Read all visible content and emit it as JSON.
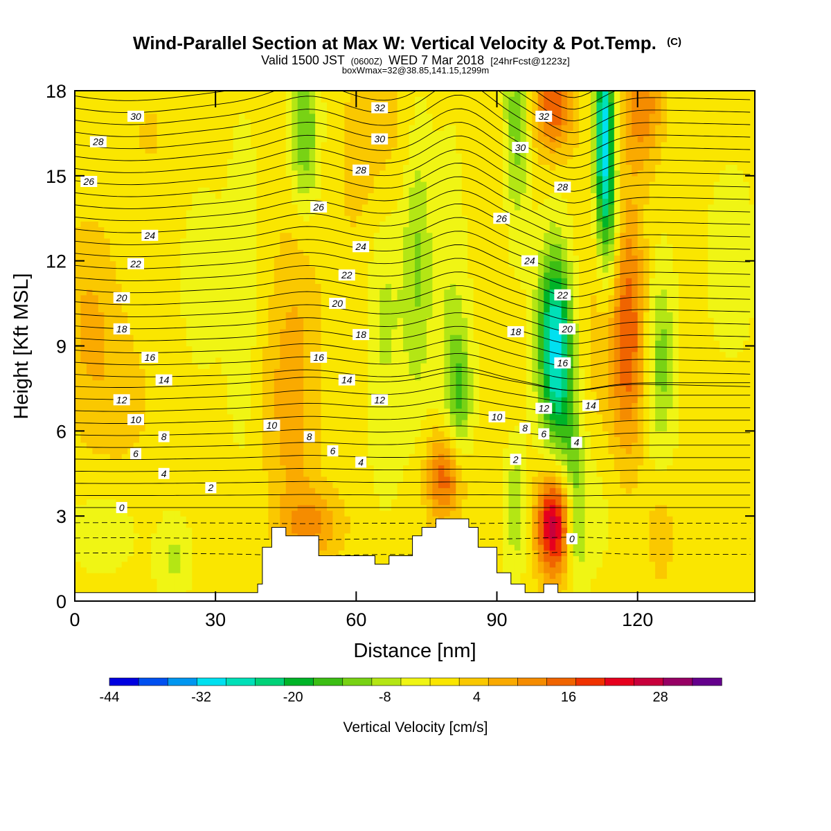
{
  "chart_data": {
    "type": "heatmap",
    "title": "Wind-Parallel Section at Max W: Vertical Velocity & Pot.Temp.",
    "title_unit": "(C)",
    "subtitle_a": "Valid 1500 JST",
    "subtitle_b": "(0600Z)",
    "subtitle_c": "WED 7 Mar 2018",
    "subtitle_d": "[24hrFcst@1223z]",
    "subtitle2": "boxWmax=32@38.85,141.15,1299m",
    "xlabel": "Distance [nm]",
    "ylabel": "Height [Kft MSL]",
    "xlim": [
      0,
      145
    ],
    "ylim": [
      0,
      18
    ],
    "xticks": [
      0,
      30,
      60,
      90,
      120
    ],
    "yticks": [
      0,
      3,
      6,
      9,
      12,
      15,
      18
    ],
    "colorbar": {
      "label": "Vertical Velocity [cm/s]",
      "ticks": [
        -44,
        -32,
        -20,
        -8,
        4,
        16,
        28
      ],
      "levels": [
        -44,
        -40,
        -36,
        -32,
        -28,
        -24,
        -20,
        -16,
        -12,
        -8,
        -4,
        0,
        4,
        8,
        12,
        16,
        20,
        24,
        28,
        32,
        36
      ],
      "colors": [
        "#0000e0",
        "#0050f0",
        "#0096f0",
        "#00e0f0",
        "#00e0b8",
        "#00d278",
        "#00b428",
        "#3cbe14",
        "#78d214",
        "#b4e614",
        "#f0f514",
        "#fae600",
        "#fac800",
        "#faaa00",
        "#f58c00",
        "#f06400",
        "#f03200",
        "#e6001e",
        "#c8003c",
        "#960064",
        "#64008c"
      ]
    },
    "terrain": {
      "x": [
        0,
        39,
        39,
        40,
        40,
        42,
        42,
        45,
        45,
        52,
        52,
        55,
        55,
        64,
        64,
        67,
        67,
        71,
        71,
        72,
        72,
        74,
        74,
        77,
        77,
        84,
        84,
        86,
        86,
        90,
        90,
        93,
        93,
        96,
        96,
        100,
        100,
        103,
        103,
        120,
        120,
        145
      ],
      "y": [
        0.3,
        0.3,
        0.6,
        0.6,
        1.9,
        1.9,
        2.6,
        2.6,
        2.3,
        2.3,
        1.6,
        1.6,
        1.6,
        1.6,
        1.3,
        1.3,
        1.6,
        1.6,
        1.6,
        1.6,
        2.3,
        2.3,
        2.6,
        2.6,
        2.9,
        2.9,
        2.6,
        2.6,
        1.9,
        1.9,
        1.0,
        1.0,
        0.6,
        0.6,
        0.3,
        0.3,
        0.6,
        0.6,
        0.3,
        0.3,
        0.3,
        0.3
      ]
    },
    "theta_levels": [
      -3,
      -2,
      -1,
      0,
      1,
      2,
      3,
      4,
      5,
      6,
      7,
      8,
      9,
      10,
      11,
      12,
      13,
      14,
      15,
      16,
      17,
      18,
      19,
      20,
      21,
      22,
      23,
      24,
      25,
      26,
      27,
      28,
      29,
      30,
      31,
      32,
      33,
      34,
      35,
      36
    ],
    "contour_labels": [
      {
        "text": "30",
        "x": 13,
        "y": 17.1
      },
      {
        "text": "28",
        "x": 5,
        "y": 16.2
      },
      {
        "text": "26",
        "x": 3,
        "y": 14.8
      },
      {
        "text": "24",
        "x": 16,
        "y": 12.9
      },
      {
        "text": "22",
        "x": 13,
        "y": 11.9
      },
      {
        "text": "20",
        "x": 10,
        "y": 10.7
      },
      {
        "text": "18",
        "x": 10,
        "y": 9.6
      },
      {
        "text": "16",
        "x": 16,
        "y": 8.6
      },
      {
        "text": "14",
        "x": 19,
        "y": 7.8
      },
      {
        "text": "12",
        "x": 10,
        "y": 7.1
      },
      {
        "text": "10",
        "x": 13,
        "y": 6.4
      },
      {
        "text": "8",
        "x": 19,
        "y": 5.8
      },
      {
        "text": "6",
        "x": 13,
        "y": 5.2
      },
      {
        "text": "4",
        "x": 19,
        "y": 4.5
      },
      {
        "text": "2",
        "x": 29,
        "y": 4.0
      },
      {
        "text": "0",
        "x": 10,
        "y": 3.3
      },
      {
        "text": "10",
        "x": 42,
        "y": 6.2
      },
      {
        "text": "8",
        "x": 50,
        "y": 5.8
      },
      {
        "text": "6",
        "x": 55,
        "y": 5.3
      },
      {
        "text": "4",
        "x": 61,
        "y": 4.9
      },
      {
        "text": "16",
        "x": 52,
        "y": 8.6
      },
      {
        "text": "14",
        "x": 58,
        "y": 7.8
      },
      {
        "text": "12",
        "x": 65,
        "y": 7.1
      },
      {
        "text": "18",
        "x": 61,
        "y": 9.4
      },
      {
        "text": "20",
        "x": 56,
        "y": 10.5
      },
      {
        "text": "22",
        "x": 58,
        "y": 11.5
      },
      {
        "text": "24",
        "x": 61,
        "y": 12.5
      },
      {
        "text": "26",
        "x": 52,
        "y": 13.9
      },
      {
        "text": "28",
        "x": 61,
        "y": 15.2
      },
      {
        "text": "30",
        "x": 65,
        "y": 16.3
      },
      {
        "text": "32",
        "x": 65,
        "y": 17.4
      },
      {
        "text": "10",
        "x": 90,
        "y": 6.5
      },
      {
        "text": "8",
        "x": 96,
        "y": 6.1
      },
      {
        "text": "6",
        "x": 100,
        "y": 5.9
      },
      {
        "text": "4",
        "x": 107,
        "y": 5.6
      },
      {
        "text": "2",
        "x": 94,
        "y": 5.0
      },
      {
        "text": "0",
        "x": 106,
        "y": 2.2
      },
      {
        "text": "12",
        "x": 100,
        "y": 6.8
      },
      {
        "text": "14",
        "x": 110,
        "y": 6.9
      },
      {
        "text": "16",
        "x": 104,
        "y": 8.4
      },
      {
        "text": "18",
        "x": 94,
        "y": 9.5
      },
      {
        "text": "20",
        "x": 105,
        "y": 9.6
      },
      {
        "text": "22",
        "x": 104,
        "y": 10.8
      },
      {
        "text": "24",
        "x": 97,
        "y": 12.0
      },
      {
        "text": "26",
        "x": 91,
        "y": 13.5
      },
      {
        "text": "28",
        "x": 104,
        "y": 14.6
      },
      {
        "text": "30",
        "x": 95,
        "y": 16.0
      },
      {
        "text": "32",
        "x": 100,
        "y": 17.1
      }
    ]
  }
}
